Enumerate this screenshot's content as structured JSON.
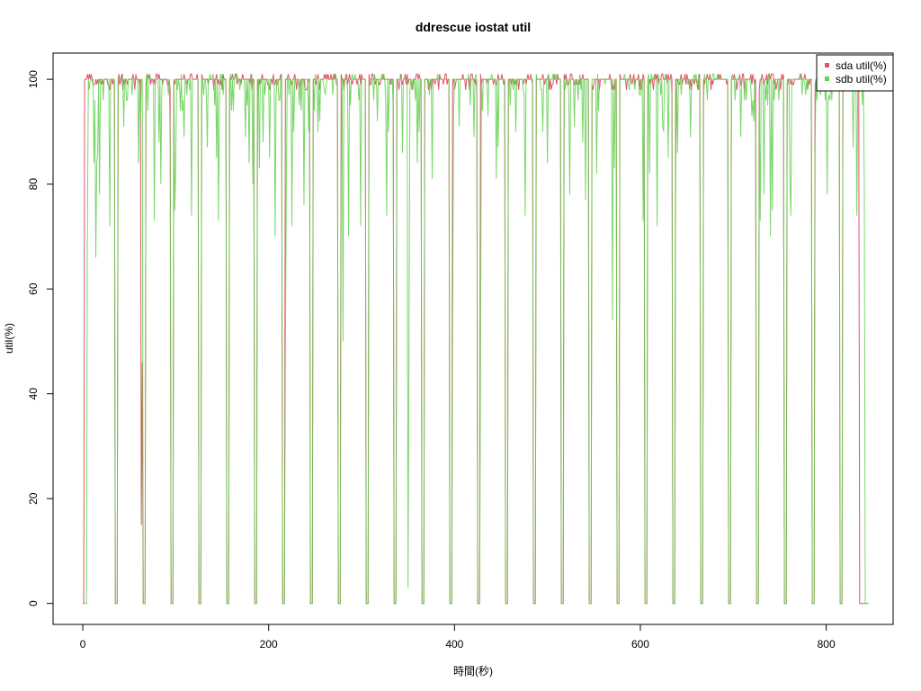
{
  "chart_data": {
    "type": "line",
    "title": "ddrescue iostat util",
    "xlabel": "時間(秒)",
    "ylabel": "util(%)",
    "xlim": [
      -32,
      872
    ],
    "ylim": [
      -4,
      105
    ],
    "xticks": [
      0,
      200,
      400,
      600,
      800
    ],
    "yticks": [
      0,
      20,
      40,
      60,
      80,
      100
    ],
    "legend_position": "top-right",
    "gap_starts": [
      35,
      65,
      95,
      125,
      155,
      185,
      215,
      245,
      275,
      305,
      335,
      365,
      395,
      425,
      455,
      485,
      515,
      545,
      575,
      605,
      635,
      665,
      695,
      725,
      755,
      785,
      815
    ],
    "gap_width": 3,
    "series": [
      {
        "name": "sda util(%)",
        "color": "#DF536B",
        "values_summary": "near 100% (sawtooth 98-101) while ddrescue reads; drops to 0 during periodic gaps about every 30 s; starts ~2 s and ends ~835 s",
        "first_point": [
          0,
          0
        ],
        "peak": 101,
        "baseline": 100,
        "notable_dips": [
          [
            63,
            15
          ],
          [
            64,
            46
          ]
        ]
      },
      {
        "name": "sdb util(%)",
        "color": "#61D04F",
        "values_summary": "mostly 100% with frequent sharp downward spikes (60-99); drops to 0 during the same periodic gaps; ends ~841 s",
        "first_point": [
          2,
          0
        ],
        "peak": 101,
        "baseline": 100,
        "notable_dips": [
          [
            14,
            66
          ],
          [
            65,
            73
          ],
          [
            218,
            47
          ],
          [
            280,
            50
          ],
          [
            351,
            46
          ],
          [
            350,
            3
          ],
          [
            367,
            60
          ],
          [
            398,
            54
          ],
          [
            428,
            48
          ],
          [
            570,
            54
          ]
        ]
      }
    ]
  }
}
